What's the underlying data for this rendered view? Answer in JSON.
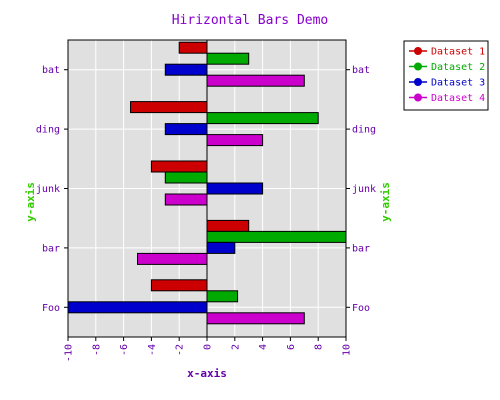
{
  "chart_data": {
    "type": "bar",
    "orientation": "horizontal",
    "title": "Hirizontal Bars Demo",
    "xlabel": "x-axis",
    "ylabel": "y-axis",
    "xlim": [
      -10,
      10
    ],
    "xticks": [
      -10,
      -8,
      -6,
      -4,
      -2,
      0,
      2,
      4,
      6,
      8,
      10
    ],
    "categories": [
      "Foo",
      "bar",
      "junk",
      "ding",
      "bat"
    ],
    "grid": true,
    "legend_position": "outside-top-right",
    "series": [
      {
        "name": "Dataset 1",
        "color": "#cc0000",
        "values": [
          -4,
          3,
          -4,
          -5.5,
          -2
        ]
      },
      {
        "name": "Dataset 2",
        "color": "#00aa00",
        "values": [
          2.2,
          10,
          -3,
          8,
          3
        ]
      },
      {
        "name": "Dataset 3",
        "color": "#0000cc",
        "values": [
          -10,
          2,
          4,
          -3,
          -3
        ]
      },
      {
        "name": "Dataset 4",
        "color": "#cc00cc",
        "values": [
          7,
          -5,
          -3,
          4,
          7
        ]
      }
    ],
    "colors": {
      "title": "#8800cc",
      "tick_labels": "#6600aa",
      "xlabel": "#6600aa",
      "ylabel": "#33cc00",
      "plot_background": "#e0e0e0",
      "grid": "#ffffff"
    }
  }
}
